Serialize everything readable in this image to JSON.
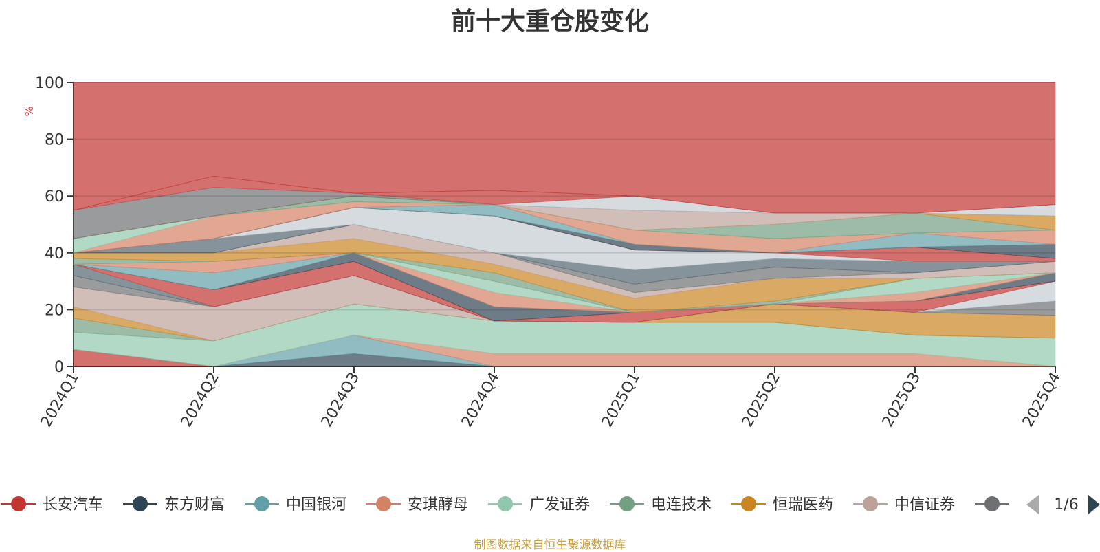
{
  "chart_data": {
    "type": "area",
    "title": "前十大重仓股变化",
    "ylabel": "%",
    "ylim": [
      0,
      100
    ],
    "yticks": [
      0,
      20,
      40,
      60,
      80,
      100
    ],
    "categories": [
      "2024Q1",
      "2024Q2",
      "2024Q3",
      "2024Q4",
      "2025Q1",
      "2025Q2",
      "2025Q3",
      "2025Q4"
    ],
    "grid": true,
    "legend_position": "bottom",
    "legend": {
      "items": [
        {
          "name": "长安汽车",
          "color": "#c23531"
        },
        {
          "name": "东方财富",
          "color": "#2f4554"
        },
        {
          "name": "中国银河",
          "color": "#61a0a8"
        },
        {
          "name": "安琪酵母",
          "color": "#d48265"
        },
        {
          "name": "广发证券",
          "color": "#91c7ae"
        },
        {
          "name": "电连技术",
          "color": "#749f83"
        },
        {
          "name": "恒瑞医药",
          "color": "#ca8622"
        },
        {
          "name": "中信证券",
          "color": "#bda29a"
        },
        {
          "name": "",
          "color": "#6e7074"
        }
      ],
      "page": "1/6"
    },
    "stack_boundaries": [
      [
        0,
        0,
        0,
        0,
        0,
        0,
        0,
        0
      ],
      [
        6,
        0,
        0,
        0,
        0,
        0,
        0,
        0
      ],
      [
        6,
        0,
        4.5,
        0,
        0,
        0,
        0,
        0
      ],
      [
        6,
        0,
        11,
        0,
        0,
        0,
        0,
        0
      ],
      [
        6,
        0,
        11,
        4.5,
        4.5,
        4.5,
        4.5,
        0
      ],
      [
        12,
        9,
        22,
        16,
        15.5,
        15.5,
        11,
        10
      ],
      [
        17,
        9,
        22,
        16,
        15.5,
        15.5,
        11,
        10
      ],
      [
        21,
        9,
        22,
        16,
        15.5,
        22,
        19,
        18
      ],
      [
        28,
        21,
        32,
        16,
        15.5,
        22,
        19,
        18
      ],
      [
        32,
        21,
        32,
        16,
        15.5,
        22,
        19,
        23
      ],
      [
        36,
        21,
        32,
        16,
        15.5,
        22,
        19,
        23
      ],
      [
        36,
        21,
        32,
        16,
        15.5,
        22,
        19,
        30
      ],
      [
        36,
        27,
        37,
        16,
        19,
        22,
        23,
        30
      ],
      [
        36,
        27,
        40,
        21,
        19,
        22,
        23,
        33
      ],
      [
        36,
        33,
        40,
        21,
        19,
        22,
        23,
        33
      ],
      [
        36,
        37,
        40,
        26,
        19,
        22,
        26,
        33
      ],
      [
        36,
        37,
        40,
        30,
        19,
        22,
        31,
        33
      ],
      [
        38,
        37,
        40,
        33,
        19,
        23,
        31,
        33
      ],
      [
        40,
        40,
        45,
        36,
        24,
        31,
        31,
        33
      ],
      [
        40,
        40,
        50,
        40,
        26,
        31,
        33,
        37
      ],
      [
        40,
        40,
        50,
        40,
        29,
        35,
        33,
        37
      ],
      [
        40,
        45,
        50,
        40,
        34,
        38,
        37,
        37
      ],
      [
        40,
        45,
        56,
        53,
        41,
        40,
        37,
        37
      ],
      [
        40,
        45,
        56,
        53,
        41,
        40,
        42,
        38
      ],
      [
        40,
        45,
        56,
        53,
        43,
        40,
        42,
        43
      ],
      [
        40,
        45,
        56,
        57,
        43,
        40,
        47,
        43
      ],
      [
        40,
        53,
        58,
        57,
        48,
        45,
        47,
        48
      ],
      [
        45,
        53,
        58,
        57,
        48,
        45,
        47,
        48
      ],
      [
        45,
        53,
        60,
        57,
        48,
        50,
        54,
        48
      ],
      [
        45,
        53,
        60,
        57,
        48,
        50,
        54,
        53
      ],
      [
        45,
        53,
        60,
        57,
        55,
        54,
        54,
        53
      ],
      [
        55,
        63,
        61,
        57,
        55,
        54,
        54,
        53
      ],
      [
        55,
        63,
        61,
        57,
        60,
        54,
        54,
        57
      ],
      [
        55,
        67,
        61,
        62,
        60,
        54,
        54,
        57
      ],
      [
        100,
        100,
        100,
        100,
        100,
        100,
        100,
        100
      ]
    ],
    "layer_colors": [
      "#c23531",
      "#2f4554",
      "#61a0a8",
      "#d48265",
      "#91c7ae",
      "#749f83",
      "#ca8622",
      "#bda29a",
      "#6e7074",
      "#546570",
      "#c4ccd3",
      "#c23531",
      "#2f4554",
      "#61a0a8",
      "#d48265",
      "#91c7ae",
      "#749f83",
      "#ca8622",
      "#bda29a",
      "#6e7074",
      "#546570",
      "#c4ccd3",
      "#c23531",
      "#2f4554",
      "#61a0a8",
      "#d48265",
      "#91c7ae",
      "#749f83",
      "#ca8622",
      "#bda29a",
      "#6e7074",
      "#c4ccd3",
      "#c23531"
    ]
  },
  "source_note": "制图数据来自恒生聚源数据库"
}
